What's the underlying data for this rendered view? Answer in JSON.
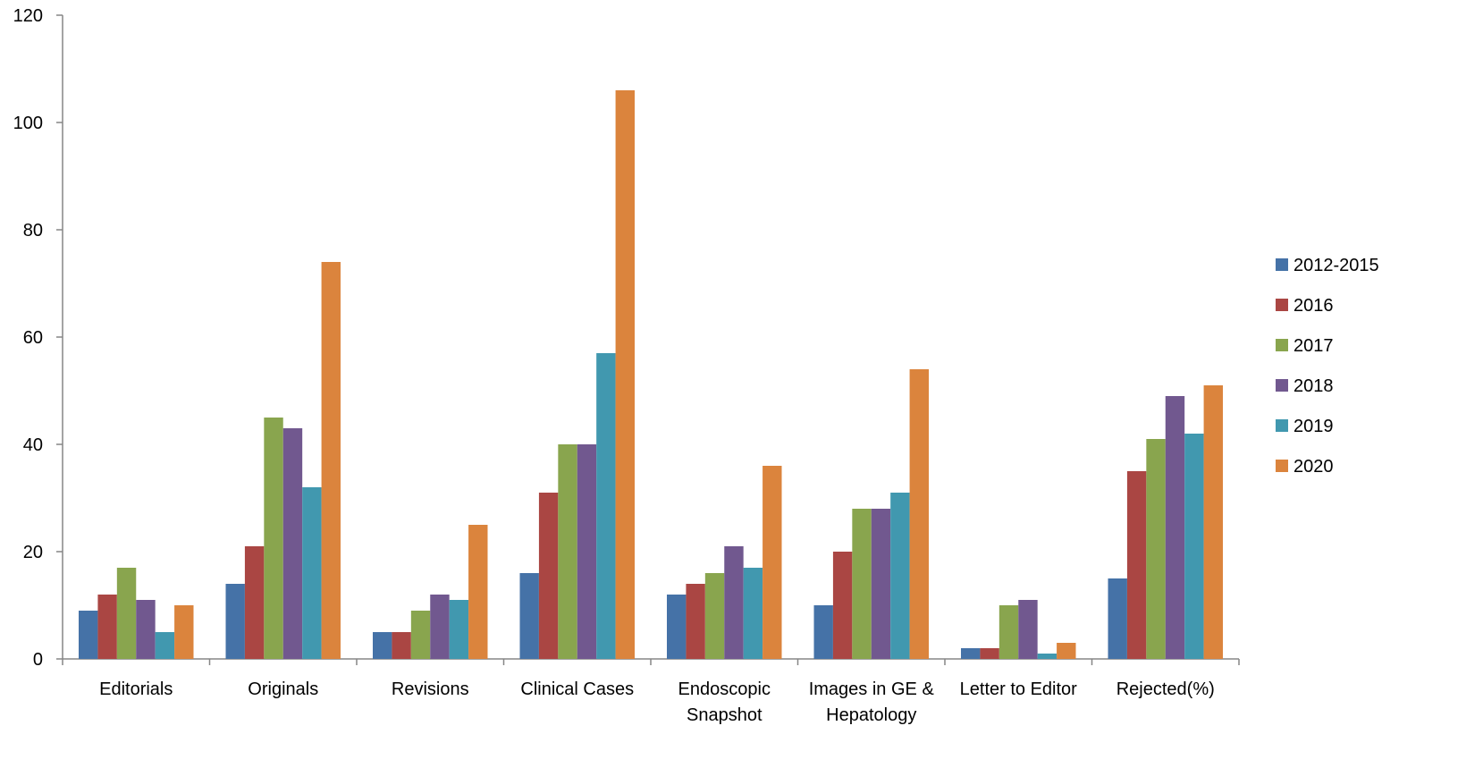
{
  "chart_data": {
    "type": "bar",
    "title": "",
    "xlabel": "",
    "ylabel": "",
    "ylim": [
      0,
      120
    ],
    "yticks": [
      0,
      20,
      40,
      60,
      80,
      100,
      120
    ],
    "grid": false,
    "legend_position": "right",
    "categories": [
      [
        "Editorials"
      ],
      [
        "Originals"
      ],
      [
        "Revisions"
      ],
      [
        "Clinical Cases"
      ],
      [
        "Endoscopic",
        "Snapshot"
      ],
      [
        "Images in GE &",
        "Hepatology"
      ],
      [
        "Letter to Editor"
      ],
      [
        "Rejected(%)"
      ]
    ],
    "series": [
      {
        "name": "2012-2015",
        "color": "#4572A7",
        "values": [
          9,
          14,
          5,
          16,
          12,
          10,
          2,
          15
        ]
      },
      {
        "name": "2016",
        "color": "#AA4643",
        "values": [
          12,
          21,
          5,
          31,
          14,
          20,
          2,
          35
        ]
      },
      {
        "name": "2017",
        "color": "#89A54E",
        "values": [
          17,
          45,
          9,
          40,
          16,
          28,
          10,
          41
        ]
      },
      {
        "name": "2018",
        "color": "#71588F",
        "values": [
          11,
          43,
          12,
          40,
          21,
          28,
          11,
          49
        ]
      },
      {
        "name": "2019",
        "color": "#4198AF",
        "values": [
          5,
          32,
          11,
          57,
          17,
          31,
          1,
          42
        ]
      },
      {
        "name": "2020",
        "color": "#DB843D",
        "values": [
          10,
          74,
          25,
          106,
          36,
          54,
          3,
          51
        ]
      }
    ]
  }
}
